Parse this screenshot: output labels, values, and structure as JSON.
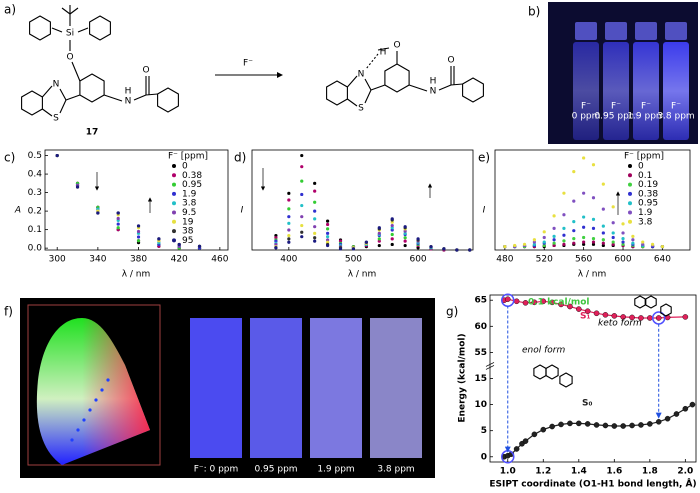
{
  "panels": {
    "a": {
      "label": "a)",
      "compound": "17",
      "reagent": "F⁻",
      "atoms": [
        "Si",
        "O",
        "N",
        "S",
        "N",
        "H",
        "O",
        "H",
        "O",
        "N",
        "S",
        "N",
        "H",
        "O"
      ]
    },
    "b": {
      "label": "b)",
      "vials": [
        {
          "ion": "F⁻",
          "conc": "0 ppm"
        },
        {
          "ion": "F⁻",
          "conc": "0.95 ppm"
        },
        {
          "ion": "F⁻",
          "conc": "1.9 ppm"
        },
        {
          "ion": "F⁻",
          "conc": "3.8 ppm"
        }
      ]
    },
    "f": {
      "label": "f)",
      "films": [
        "F⁻: 0 ppm",
        "0.95 ppm",
        "1.9 ppm",
        "3.8 ppm"
      ]
    }
  },
  "chart_data": [
    {
      "type": "scatter",
      "panel_label": "c)",
      "x_label": "λ / nm",
      "y_label": "A",
      "xlim": [
        288,
        468
      ],
      "ylim": [
        -0.01,
        0.53
      ],
      "xticks": [
        300,
        340,
        380,
        420,
        460
      ],
      "yticks": [
        {
          "value": 0,
          "label": "0.0"
        },
        0.1,
        0.2,
        0.3,
        0.4,
        0.5
      ],
      "grid": false,
      "legend": "upper right",
      "legend_title": "F⁻ [ppm]",
      "x": [
        300,
        320,
        340,
        360,
        380,
        400,
        420,
        440
      ],
      "series": [
        {
          "name": "0",
          "color": "#000000",
          "values": [
            0.5,
            0.35,
            0.22,
            0.1,
            0.03,
            0.01,
            0,
            0
          ]
        },
        {
          "name": "0.38",
          "color": "#b0006a",
          "values": [
            0.5,
            0.35,
            0.22,
            0.1,
            0.04,
            0.01,
            0,
            0
          ]
        },
        {
          "name": "0.95",
          "color": "#33cc33",
          "values": [
            0.5,
            0.35,
            0.22,
            0.11,
            0.04,
            0.02,
            0,
            0
          ]
        },
        {
          "name": "1.9",
          "color": "#3030d0",
          "values": [
            0.5,
            0.34,
            0.21,
            0.13,
            0.06,
            0.02,
            0.01,
            0
          ]
        },
        {
          "name": "3.8",
          "color": "#22c0c8",
          "values": [
            0.5,
            0.34,
            0.21,
            0.15,
            0.08,
            0.03,
            0.01,
            0.01
          ]
        },
        {
          "name": "9.5",
          "color": "#8040b0",
          "values": [
            0.5,
            0.34,
            0.2,
            0.16,
            0.09,
            0.04,
            0.01,
            0.01
          ]
        },
        {
          "name": "19",
          "color": "#e6e040",
          "values": [
            0.5,
            0.33,
            0.2,
            0.18,
            0.11,
            0.04,
            0.02,
            0.01
          ]
        },
        {
          "name": "38",
          "color": "#303030",
          "values": [
            0.5,
            0.33,
            0.19,
            0.19,
            0.12,
            0.05,
            0.02,
            0.01
          ]
        },
        {
          "name": "95",
          "color": "#1a1a80",
          "values": [
            0.5,
            0.33,
            0.19,
            0.19,
            0.12,
            0.05,
            0.02,
            0.01
          ]
        }
      ]
    },
    {
      "type": "scatter",
      "panel_label": "d)",
      "x_label": "λ / nm",
      "y_label": "I",
      "xlim": [
        343,
        685
      ],
      "ylim": [
        0,
        0.9
      ],
      "xticks": [
        400,
        500,
        600
      ],
      "grid": false,
      "x": [
        380,
        400,
        420,
        440,
        460,
        480,
        500,
        520,
        540,
        560,
        580,
        600,
        620,
        640,
        660,
        680
      ],
      "series": [
        {
          "color": "#000000",
          "values": [
            0.13,
            0.51,
            0.85,
            0.6,
            0.26,
            0.09,
            0.03,
            0.03,
            0.04,
            0.05,
            0.04,
            0.02,
            0.01,
            0,
            0,
            0
          ]
        },
        {
          "color": "#b0006a",
          "values": [
            0.11,
            0.45,
            0.75,
            0.53,
            0.23,
            0.08,
            0.03,
            0.04,
            0.08,
            0.1,
            0.08,
            0.04,
            0.01,
            0,
            0,
            0
          ]
        },
        {
          "color": "#33cc33",
          "values": [
            0.09,
            0.37,
            0.62,
            0.43,
            0.19,
            0.06,
            0.03,
            0.05,
            0.1,
            0.14,
            0.11,
            0.05,
            0.02,
            0.01,
            0,
            0
          ]
        },
        {
          "color": "#3030d0",
          "values": [
            0.08,
            0.3,
            0.5,
            0.35,
            0.15,
            0.05,
            0.02,
            0.05,
            0.13,
            0.18,
            0.14,
            0.06,
            0.02,
            0.01,
            0,
            0
          ]
        },
        {
          "color": "#22c0c8",
          "values": [
            0.06,
            0.24,
            0.4,
            0.28,
            0.12,
            0.04,
            0.02,
            0.05,
            0.14,
            0.2,
            0.15,
            0.07,
            0.02,
            0.01,
            0,
            0
          ]
        },
        {
          "color": "#8040b0",
          "values": [
            0.05,
            0.18,
            0.3,
            0.21,
            0.09,
            0.03,
            0.02,
            0.06,
            0.15,
            0.22,
            0.17,
            0.08,
            0.03,
            0.01,
            0,
            0
          ]
        },
        {
          "color": "#e6e040",
          "values": [
            0.03,
            0.13,
            0.22,
            0.15,
            0.07,
            0.02,
            0.02,
            0.06,
            0.18,
            0.25,
            0.19,
            0.09,
            0.03,
            0.01,
            0,
            0
          ]
        },
        {
          "color": "#303030",
          "values": [
            0.02,
            0.1,
            0.16,
            0.11,
            0.05,
            0.02,
            0.01,
            0.07,
            0.19,
            0.27,
            0.2,
            0.09,
            0.03,
            0.01,
            0,
            0
          ]
        },
        {
          "color": "#1a1a80",
          "values": [
            0.02,
            0.07,
            0.12,
            0.08,
            0.04,
            0.01,
            0.01,
            0.07,
            0.2,
            0.28,
            0.21,
            0.1,
            0.03,
            0.01,
            0,
            0
          ]
        }
      ]
    },
    {
      "type": "scatter",
      "panel_label": "e)",
      "x_label": "λ / nm",
      "y_label": "I",
      "xlim": [
        470,
        668
      ],
      "ylim": [
        -0.03,
        0.85
      ],
      "xticks": [
        480,
        520,
        560,
        600,
        640
      ],
      "grid": false,
      "legend": "upper right",
      "legend_title": "F⁻ [ppm]",
      "x": [
        480,
        490,
        500,
        510,
        520,
        530,
        540,
        550,
        560,
        570,
        580,
        590,
        600,
        610,
        620,
        630,
        640
      ],
      "series": [
        {
          "name": "0",
          "color": "#000000",
          "values": [
            0,
            0,
            0,
            0,
            0,
            0.01,
            0.01,
            0.02,
            0.02,
            0.02,
            0.01,
            0.01,
            0.01,
            0,
            0,
            0,
            0
          ]
        },
        {
          "name": "0.1",
          "color": "#a0005a",
          "values": [
            0,
            0,
            0,
            0,
            0.01,
            0.01,
            0.02,
            0.03,
            0.04,
            0.04,
            0.03,
            0.02,
            0.01,
            0,
            0,
            0,
            0
          ]
        },
        {
          "name": "0.19",
          "color": "#40d040",
          "values": [
            0,
            0,
            0,
            0.01,
            0.01,
            0.03,
            0.05,
            0.07,
            0.08,
            0.07,
            0.06,
            0.04,
            0.02,
            0.01,
            0,
            0,
            0
          ]
        },
        {
          "name": "0.38",
          "color": "#3030d0",
          "values": [
            0,
            0,
            0.01,
            0.01,
            0.03,
            0.06,
            0.1,
            0.14,
            0.17,
            0.16,
            0.12,
            0.08,
            0.04,
            0.02,
            0.01,
            0,
            0
          ]
        },
        {
          "name": "0.95",
          "color": "#22c0c8",
          "values": [
            0,
            0,
            0.01,
            0.02,
            0.04,
            0.09,
            0.16,
            0.22,
            0.26,
            0.24,
            0.18,
            0.12,
            0.07,
            0.03,
            0.01,
            0.01,
            0
          ]
        },
        {
          "name": "1.9",
          "color": "#8050c0",
          "values": [
            0,
            0,
            0.01,
            0.04,
            0.08,
            0.16,
            0.28,
            0.4,
            0.47,
            0.43,
            0.33,
            0.21,
            0.12,
            0.06,
            0.02,
            0.01,
            0
          ]
        },
        {
          "name": "3.8",
          "color": "#e8e040",
          "values": [
            0,
            0.01,
            0.02,
            0.06,
            0.13,
            0.27,
            0.47,
            0.66,
            0.78,
            0.72,
            0.55,
            0.35,
            0.2,
            0.09,
            0.04,
            0.02,
            0
          ]
        }
      ]
    },
    {
      "type": "line",
      "panel_label": "g)",
      "x_label": "ESIPT coordinate (O1-H1 bond length, Å)",
      "y_label": "Energy (kcal/mol)",
      "xlim": [
        0.9,
        2.06
      ],
      "ylim": [
        -1,
        66
      ],
      "y_axis_break": true,
      "xticks": [
        {
          "value": 1,
          "label": "1.0"
        },
        1.2,
        1.4,
        1.6,
        1.8,
        {
          "value": 2,
          "label": "2.0"
        }
      ],
      "yticks": [
        0,
        5,
        10,
        15,
        55,
        60,
        65
      ],
      "grid": false,
      "series": [
        {
          "name": "S₁",
          "color": "#e0205a",
          "x": [
            0.98,
            1.0,
            1.05,
            1.1,
            1.15,
            1.2,
            1.25,
            1.3,
            1.35,
            1.4,
            1.45,
            1.5,
            1.55,
            1.6,
            1.65,
            1.7,
            1.75,
            1.8,
            1.85,
            1.9,
            2.0
          ],
          "values": [
            65,
            65.2,
            64.8,
            64.5,
            64.6,
            64.8,
            64.6,
            64.2,
            63.8,
            63.3,
            62.9,
            62.5,
            62.2,
            62,
            61.8,
            61.7,
            61.6,
            61.6,
            61.6,
            61.7,
            61.8
          ]
        },
        {
          "name": "S₀",
          "color": "#222222",
          "x": [
            0.98,
            1.0,
            1.02,
            1.05,
            1.08,
            1.1,
            1.15,
            1.2,
            1.25,
            1.3,
            1.35,
            1.4,
            1.45,
            1.5,
            1.55,
            1.6,
            1.65,
            1.7,
            1.75,
            1.8,
            1.85,
            1.9,
            1.95,
            2.0,
            2.04
          ],
          "values": [
            0,
            0.2,
            0.5,
            1.5,
            2.5,
            3,
            4.3,
            5.2,
            5.8,
            6.2,
            6.4,
            6.4,
            6.3,
            6.1,
            6,
            5.9,
            5.9,
            6,
            6.1,
            6.3,
            6.7,
            7.3,
            8.2,
            9.2,
            10
          ]
        }
      ],
      "annotations": [
        {
          "text": "0.1 kcal/mol",
          "color": "#3ec43e"
        },
        {
          "text": "enol form",
          "color": "#000000"
        },
        {
          "text": "keto form",
          "color": "#000000"
        }
      ]
    }
  ]
}
